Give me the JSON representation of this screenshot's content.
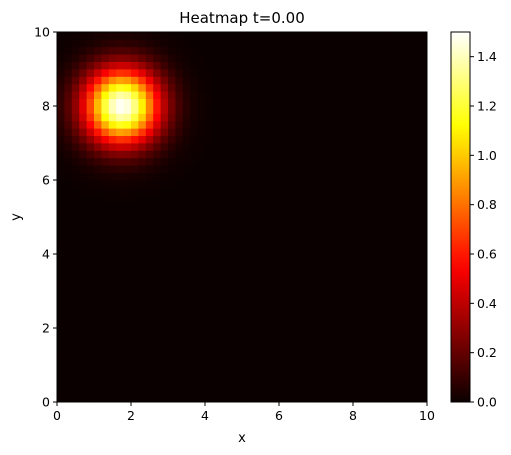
{
  "chart_data": {
    "type": "heatmap",
    "title": "Heatmap t=0.00",
    "xlabel": "x",
    "ylabel": "y",
    "xlim": [
      0,
      10
    ],
    "ylim": [
      0,
      10
    ],
    "xticks": [
      0,
      2,
      4,
      6,
      8,
      10
    ],
    "yticks": [
      0,
      2,
      4,
      6,
      8,
      10
    ],
    "colormap": "hot",
    "colorbar": {
      "range": [
        0.0,
        1.5
      ],
      "ticks": [
        "0.0",
        "0.2",
        "0.4",
        "0.6",
        "0.8",
        "1.0",
        "1.2",
        "1.4"
      ]
    },
    "field": {
      "shape": "gaussian",
      "center_x": 1.75,
      "center_y": 8.0,
      "peak": 1.5,
      "sigma": 0.7,
      "grid": 50
    }
  }
}
